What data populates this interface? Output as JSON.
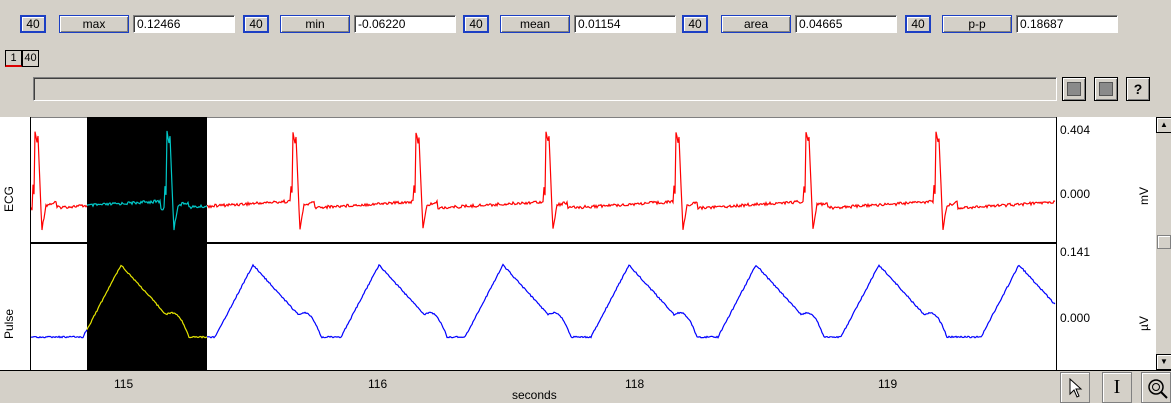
{
  "measurements": [
    {
      "channel": "40",
      "name": "max",
      "value": "0.12466"
    },
    {
      "channel": "40",
      "name": "min",
      "value": "-0.06220"
    },
    {
      "channel": "40",
      "name": "mean",
      "value": "0.01154"
    },
    {
      "channel": "40",
      "name": "area",
      "value": "0.04665"
    },
    {
      "channel": "40",
      "name": "p-p",
      "value": "0.18687"
    }
  ],
  "toggles": {
    "first": "1",
    "second": "40"
  },
  "toolbar": {
    "help_label": "?"
  },
  "channels": {
    "ecg": {
      "label": "ECG",
      "scale_top": "0.404",
      "scale_mid": "0.000",
      "unit": "mV"
    },
    "pulse": {
      "label": "Pulse",
      "scale_top": "0.141",
      "scale_mid": "0.000",
      "unit": "µV"
    }
  },
  "time_axis": {
    "ticks": [
      "115",
      "116",
      "118",
      "119"
    ],
    "label": "seconds"
  },
  "tools": {
    "pointer": "arrow-cursor-icon",
    "ibeam": "I",
    "zoom": "zoom-icon"
  },
  "colors": {
    "ecg": "#ff0000",
    "ecg_selected": "#00c8c8",
    "pulse": "#0000ff",
    "pulse_selected": "#e6e600",
    "selection": "#000000"
  }
}
